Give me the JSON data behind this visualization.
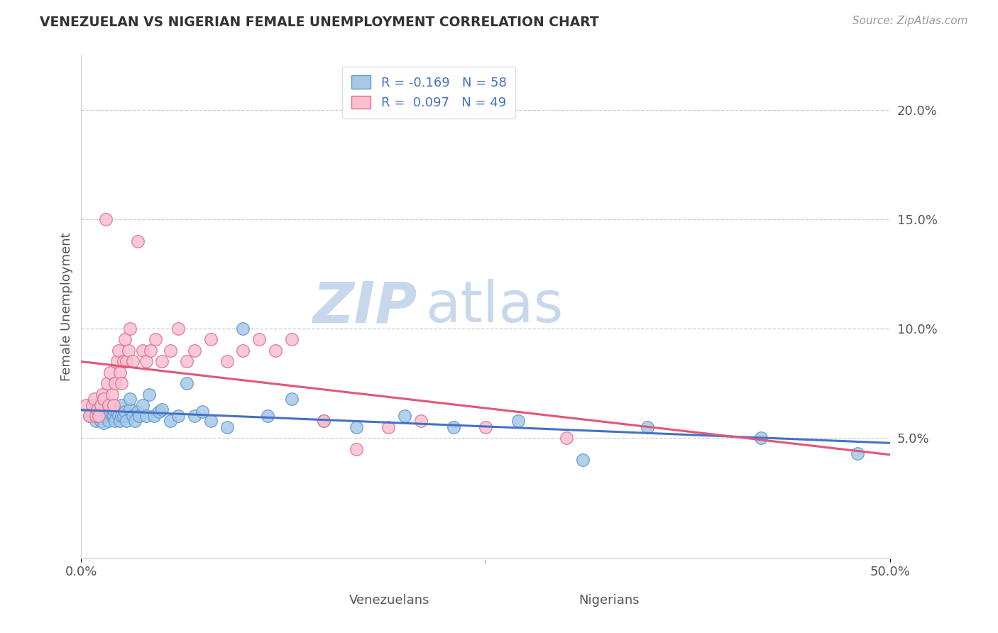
{
  "title": "VENEZUELAN VS NIGERIAN FEMALE UNEMPLOYMENT CORRELATION CHART",
  "source": "Source: ZipAtlas.com",
  "ylabel": "Female Unemployment",
  "xlim": [
    0.0,
    0.5
  ],
  "ylim": [
    -0.005,
    0.225
  ],
  "right_yticks": [
    0.05,
    0.1,
    0.15,
    0.2
  ],
  "right_yticklabels": [
    "5.0%",
    "10.0%",
    "15.0%",
    "20.0%"
  ],
  "venezuelan_R": -0.169,
  "venezuelan_N": 58,
  "nigerian_R": 0.097,
  "nigerian_N": 49,
  "blue_fill": "#a8c8e8",
  "blue_edge": "#5b9bd5",
  "pink_fill": "#f9c0d0",
  "pink_edge": "#e07090",
  "blue_line_color": "#4472c4",
  "pink_line_color": "#e05878",
  "watermark_zip": "ZIP",
  "watermark_atlas": "atlas",
  "watermark_color": "#c8d8ec",
  "venezuelan_x": [
    0.005,
    0.007,
    0.008,
    0.009,
    0.01,
    0.01,
    0.011,
    0.012,
    0.013,
    0.014,
    0.015,
    0.015,
    0.016,
    0.017,
    0.018,
    0.019,
    0.02,
    0.02,
    0.021,
    0.022,
    0.023,
    0.024,
    0.025,
    0.025,
    0.026,
    0.027,
    0.028,
    0.03,
    0.03,
    0.032,
    0.033,
    0.035,
    0.036,
    0.038,
    0.04,
    0.042,
    0.045,
    0.048,
    0.05,
    0.055,
    0.06,
    0.065,
    0.07,
    0.075,
    0.08,
    0.09,
    0.1,
    0.115,
    0.13,
    0.15,
    0.17,
    0.2,
    0.23,
    0.27,
    0.31,
    0.35,
    0.42,
    0.48
  ],
  "venezuelan_y": [
    0.06,
    0.06,
    0.065,
    0.058,
    0.06,
    0.062,
    0.063,
    0.058,
    0.06,
    0.057,
    0.06,
    0.063,
    0.06,
    0.058,
    0.062,
    0.06,
    0.06,
    0.063,
    0.058,
    0.062,
    0.06,
    0.058,
    0.06,
    0.065,
    0.06,
    0.062,
    0.058,
    0.063,
    0.068,
    0.06,
    0.058,
    0.062,
    0.06,
    0.065,
    0.06,
    0.07,
    0.06,
    0.062,
    0.063,
    0.058,
    0.06,
    0.075,
    0.06,
    0.062,
    0.058,
    0.055,
    0.1,
    0.06,
    0.068,
    0.058,
    0.055,
    0.06,
    0.055,
    0.058,
    0.04,
    0.055,
    0.05,
    0.043
  ],
  "nigerian_x": [
    0.003,
    0.005,
    0.007,
    0.008,
    0.009,
    0.01,
    0.011,
    0.012,
    0.013,
    0.014,
    0.015,
    0.016,
    0.017,
    0.018,
    0.019,
    0.02,
    0.021,
    0.022,
    0.023,
    0.024,
    0.025,
    0.026,
    0.027,
    0.028,
    0.029,
    0.03,
    0.032,
    0.035,
    0.038,
    0.04,
    0.043,
    0.046,
    0.05,
    0.055,
    0.06,
    0.065,
    0.07,
    0.08,
    0.09,
    0.1,
    0.11,
    0.12,
    0.13,
    0.15,
    0.17,
    0.19,
    0.21,
    0.25,
    0.3
  ],
  "nigerian_y": [
    0.065,
    0.06,
    0.065,
    0.068,
    0.06,
    0.063,
    0.06,
    0.065,
    0.07,
    0.068,
    0.15,
    0.075,
    0.065,
    0.08,
    0.07,
    0.065,
    0.075,
    0.085,
    0.09,
    0.08,
    0.075,
    0.085,
    0.095,
    0.085,
    0.09,
    0.1,
    0.085,
    0.14,
    0.09,
    0.085,
    0.09,
    0.095,
    0.085,
    0.09,
    0.1,
    0.085,
    0.09,
    0.095,
    0.085,
    0.09,
    0.095,
    0.09,
    0.095,
    0.058,
    0.045,
    0.055,
    0.058,
    0.055,
    0.05
  ]
}
